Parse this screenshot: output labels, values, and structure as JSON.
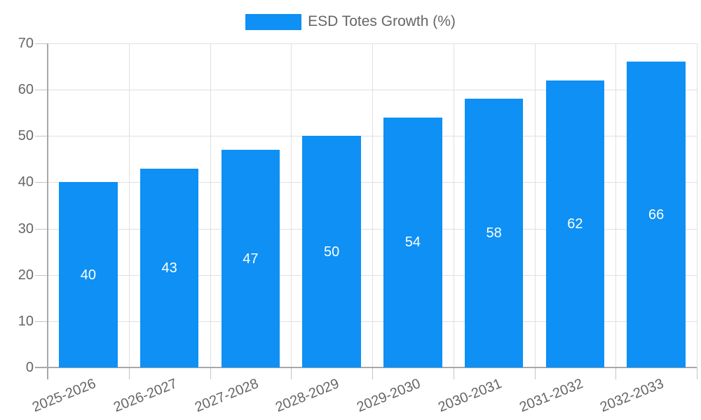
{
  "legend": {
    "position": "top-center",
    "items": [
      {
        "label": "ESD Totes Growth (%)",
        "color": "#0E90F5"
      }
    ]
  },
  "chart_data": {
    "type": "bar",
    "title": "",
    "xlabel": "",
    "ylabel": "",
    "series_name": "ESD Totes Growth (%)",
    "categories": [
      "2025-2026",
      "2026-2027",
      "2027-2028",
      "2028-2029",
      "2029-2030",
      "2030-2031",
      "2031-2032",
      "2032-2033"
    ],
    "values": [
      40,
      43,
      47,
      50,
      54,
      58,
      62,
      66
    ],
    "value_labels": [
      "40",
      "43",
      "47",
      "50",
      "54",
      "58",
      "62",
      "66"
    ],
    "ylim": [
      0,
      70
    ],
    "yticks": [
      0,
      10,
      20,
      30,
      40,
      50,
      60,
      70
    ],
    "grid": true,
    "legend_position": "top-center",
    "bar_color": "#0E90F5",
    "value_label_color": "#ffffff"
  },
  "colors": {
    "background": "#ffffff",
    "axis_line": "#a8a8a8",
    "gridline": "#e0e0e0",
    "tick": "#c4c4c4",
    "axis_text": "#666666",
    "bar": "#0E90F5",
    "value_label": "#ffffff"
  }
}
